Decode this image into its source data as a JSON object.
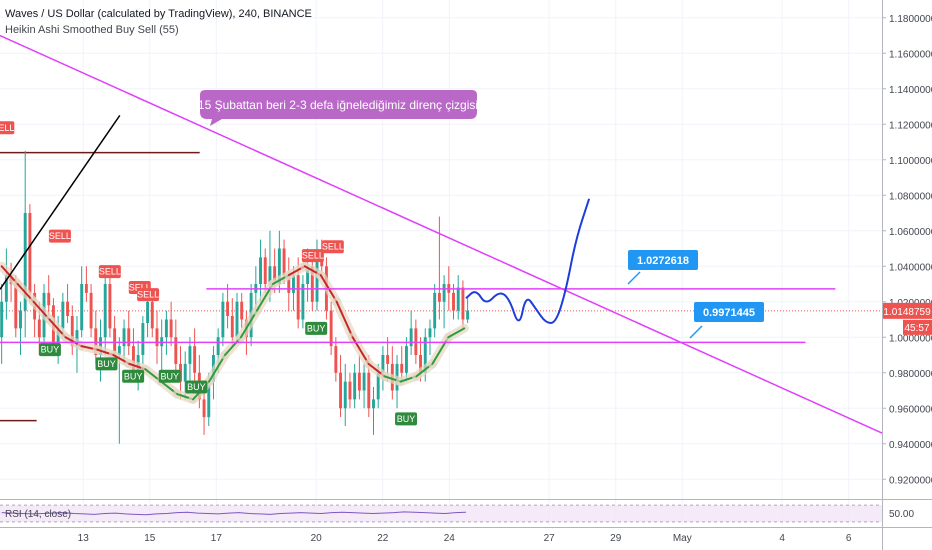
{
  "header": {
    "symbol_title": "Waves / US Dollar (calculated by TradingView), 240, BINANCE",
    "indicator_title": "Heikin Ashi Smoothed Buy Sell  (55)"
  },
  "colors": {
    "up": "#26a69a",
    "down": "#ef5350",
    "trend": "#e040fb",
    "projection": "#1e3ddb",
    "label_blue": "#2196f3",
    "smooth_up": "#2e9e3c",
    "smooth_down": "#c62828"
  },
  "chart_data": {
    "type": "candlestick",
    "price_axis": {
      "ylim": [
        0.91,
        1.19
      ],
      "ticks": [
        "1.1800000",
        "1.1600000",
        "1.1400000",
        "1.1200000",
        "1.1000000",
        "1.0800000",
        "1.0600000",
        "1.0400000",
        "1.0200000",
        "1.0000000",
        "0.9800000",
        "0.9600000",
        "0.9400000",
        "0.9200000"
      ],
      "tick_values": [
        1.18,
        1.16,
        1.14,
        1.12,
        1.1,
        1.08,
        1.06,
        1.04,
        1.02,
        1.0,
        0.98,
        0.96,
        0.94,
        0.92
      ],
      "last_price": "1.0148759",
      "last_price_value": 1.0148759,
      "countdown": "45:57"
    },
    "time_axis": {
      "xlim": [
        10.5,
        37.0
      ],
      "ticks": [
        {
          "label": "13",
          "day": 13
        },
        {
          "label": "15",
          "day": 15
        },
        {
          "label": "17",
          "day": 17
        },
        {
          "label": "20",
          "day": 20
        },
        {
          "label": "22",
          "day": 22
        },
        {
          "label": "24",
          "day": 24
        },
        {
          "label": "27",
          "day": 27
        },
        {
          "label": "29",
          "day": 29
        },
        {
          "label": "May",
          "day": 31
        },
        {
          "label": "4",
          "day": 34
        },
        {
          "label": "6",
          "day": 36
        }
      ]
    },
    "candles": [
      [
        1.0,
        1.03,
        0.985,
        1.02
      ],
      [
        1.02,
        1.05,
        1.01,
        1.035
      ],
      [
        1.035,
        1.042,
        1.02,
        1.03
      ],
      [
        1.03,
        1.035,
        1.0,
        1.005
      ],
      [
        1.005,
        1.02,
        0.99,
        1.015
      ],
      [
        1.015,
        1.105,
        1.0,
        1.07
      ],
      [
        1.07,
        1.075,
        1.02,
        1.025
      ],
      [
        1.025,
        1.03,
        1.0,
        1.01
      ],
      [
        1.01,
        1.02,
        0.99,
        1.0
      ],
      [
        1.0,
        1.03,
        0.995,
        1.025
      ],
      [
        1.025,
        1.035,
        1.012,
        1.018
      ],
      [
        1.018,
        1.022,
        0.992,
        0.996
      ],
      [
        0.996,
        1.012,
        0.985,
        1.005
      ],
      [
        1.005,
        1.025,
        1.0,
        1.02
      ],
      [
        1.02,
        1.03,
        1.008,
        1.012
      ],
      [
        1.012,
        1.018,
        0.99,
        0.995
      ],
      [
        0.995,
        1.012,
        0.98,
        1.004
      ],
      [
        1.004,
        1.04,
        1.0,
        1.03
      ],
      [
        1.03,
        1.04,
        1.02,
        1.025
      ],
      [
        1.025,
        1.03,
        1.0,
        1.005
      ],
      [
        1.005,
        1.015,
        0.985,
        0.99
      ],
      [
        0.99,
        1.01,
        0.975,
        1.0
      ],
      [
        1.0,
        1.035,
        0.99,
        1.03
      ],
      [
        1.03,
        1.035,
        1.0,
        1.005
      ],
      [
        1.005,
        1.012,
        0.985,
        0.99
      ],
      [
        0.99,
        1.0,
        0.94,
        0.995
      ],
      [
        0.995,
        1.01,
        0.985,
        1.005
      ],
      [
        1.005,
        1.015,
        0.99,
        0.995
      ],
      [
        0.995,
        1.005,
        0.975,
        0.98
      ],
      [
        0.98,
        0.998,
        0.97,
        0.99
      ],
      [
        0.99,
        1.012,
        0.985,
        1.008
      ],
      [
        1.008,
        1.03,
        1.0,
        1.02
      ],
      [
        1.02,
        1.025,
        1.0,
        1.005
      ],
      [
        1.005,
        1.015,
        0.985,
        0.995
      ],
      [
        0.995,
        1.01,
        0.98,
        1.0
      ],
      [
        1.0,
        1.015,
        0.99,
        1.01
      ],
      [
        1.01,
        1.02,
        0.995,
        1.0
      ],
      [
        1.0,
        1.01,
        0.975,
        0.985
      ],
      [
        0.985,
        0.995,
        0.965,
        0.975
      ],
      [
        0.975,
        0.992,
        0.965,
        0.985
      ],
      [
        0.985,
        1.0,
        0.975,
        0.995
      ],
      [
        0.995,
        1.005,
        0.975,
        0.98
      ],
      [
        0.98,
        0.99,
        0.96,
        0.965
      ],
      [
        0.965,
        0.975,
        0.945,
        0.955
      ],
      [
        0.955,
        0.98,
        0.95,
        0.975
      ],
      [
        0.975,
        0.995,
        0.965,
        0.99
      ],
      [
        0.99,
        1.005,
        0.98,
        1.0
      ],
      [
        1.0,
        1.025,
        0.995,
        1.02
      ],
      [
        1.02,
        1.03,
        1.005,
        1.012
      ],
      [
        1.012,
        1.022,
        0.995,
        1.0
      ],
      [
        1.0,
        1.025,
        0.998,
        1.02
      ],
      [
        1.02,
        1.025,
        1.005,
        1.01
      ],
      [
        1.01,
        1.015,
        0.99,
        1.0
      ],
      [
        1.0,
        1.03,
        0.995,
        1.025
      ],
      [
        1.025,
        1.04,
        1.015,
        1.03
      ],
      [
        1.03,
        1.055,
        1.02,
        1.045
      ],
      [
        1.045,
        1.05,
        1.025,
        1.03
      ],
      [
        1.03,
        1.06,
        1.02,
        1.04
      ],
      [
        1.04,
        1.05,
        1.025,
        1.03
      ],
      [
        1.03,
        1.06,
        1.025,
        1.05
      ],
      [
        1.05,
        1.055,
        1.03,
        1.035
      ],
      [
        1.035,
        1.045,
        1.015,
        1.025
      ],
      [
        1.025,
        1.04,
        1.015,
        1.035
      ],
      [
        1.035,
        1.045,
        1.005,
        1.01
      ],
      [
        1.01,
        1.035,
        1.005,
        1.03
      ],
      [
        1.03,
        1.05,
        1.02,
        1.04
      ],
      [
        1.04,
        1.045,
        1.015,
        1.02
      ],
      [
        1.02,
        1.055,
        1.015,
        1.045
      ],
      [
        1.045,
        1.055,
        1.035,
        1.04
      ],
      [
        1.04,
        1.045,
        1.01,
        1.015
      ],
      [
        1.015,
        1.02,
        0.99,
        0.995
      ],
      [
        0.995,
        1.0,
        0.975,
        0.98
      ],
      [
        0.98,
        0.99,
        0.955,
        0.96
      ],
      [
        0.96,
        0.985,
        0.95,
        0.975
      ],
      [
        0.975,
        0.98,
        0.96,
        0.965
      ],
      [
        0.965,
        0.985,
        0.96,
        0.98
      ],
      [
        0.98,
        0.99,
        0.965,
        0.97
      ],
      [
        0.97,
        0.985,
        0.96,
        0.98
      ],
      [
        0.98,
        0.99,
        0.955,
        0.96
      ],
      [
        0.96,
        0.972,
        0.945,
        0.965
      ],
      [
        0.965,
        0.985,
        0.96,
        0.98
      ],
      [
        0.98,
        0.995,
        0.97,
        0.99
      ],
      [
        0.99,
        1.0,
        0.975,
        0.985
      ],
      [
        0.985,
        0.995,
        0.965,
        0.97
      ],
      [
        0.97,
        0.99,
        0.96,
        0.985
      ],
      [
        0.985,
        0.995,
        0.975,
        0.98
      ],
      [
        0.98,
        1.0,
        0.975,
        0.995
      ],
      [
        0.995,
        1.015,
        0.99,
        1.005
      ],
      [
        1.005,
        1.01,
        0.985,
        0.99
      ],
      [
        0.99,
        1.0,
        0.975,
        0.98
      ],
      [
        0.98,
        1.005,
        0.975,
        1.0
      ],
      [
        1.0,
        1.01,
        0.99,
        1.005
      ],
      [
        1.005,
        1.03,
        1.0,
        1.025
      ],
      [
        1.025,
        1.068,
        1.01,
        1.02
      ],
      [
        1.02,
        1.035,
        1.005,
        1.03
      ],
      [
        1.03,
        1.04,
        1.015,
        1.025
      ],
      [
        1.025,
        1.03,
        1.01,
        1.015
      ],
      [
        1.015,
        1.035,
        1.01,
        1.028
      ],
      [
        1.028,
        1.032,
        1.005,
        1.01
      ],
      [
        1.01,
        1.022,
        1.008,
        1.015
      ]
    ],
    "smoothed_line": {
      "colors_by_segment": [
        "down",
        "down",
        "down",
        "up",
        "up",
        "up",
        "down",
        "down",
        "up",
        "up"
      ],
      "values": [
        1.04,
        1.03,
        1.02,
        1.01,
        1.0,
        0.995,
        0.993,
        0.99,
        0.985,
        0.982,
        0.975,
        0.968,
        0.965,
        0.975,
        0.99,
        1.0,
        1.015,
        1.03,
        1.035,
        1.04,
        1.035,
        1.02,
        1.0,
        0.985,
        0.978,
        0.975,
        0.978,
        0.985,
        1.0,
        1.005
      ]
    },
    "signals": [
      {
        "type": "SELL",
        "day": 10.6,
        "price": 1.118
      },
      {
        "type": "SELL",
        "day": 12.3,
        "price": 1.057
      },
      {
        "type": "SELL",
        "day": 13.8,
        "price": 1.037
      },
      {
        "type": "SELL",
        "day": 14.7,
        "price": 1.028
      },
      {
        "type": "SELL",
        "day": 14.95,
        "price": 1.024
      },
      {
        "type": "SELL",
        "day": 19.9,
        "price": 1.046
      },
      {
        "type": "SELL",
        "day": 20.5,
        "price": 1.051
      },
      {
        "type": "BUY",
        "day": 12.0,
        "price": 0.993
      },
      {
        "type": "BUY",
        "day": 13.7,
        "price": 0.985
      },
      {
        "type": "BUY",
        "day": 14.5,
        "price": 0.978
      },
      {
        "type": "BUY",
        "day": 15.6,
        "price": 0.978
      },
      {
        "type": "BUY",
        "day": 16.4,
        "price": 0.972
      },
      {
        "type": "BUY",
        "day": 20.0,
        "price": 1.005
      },
      {
        "type": "BUY",
        "day": 22.7,
        "price": 0.954
      }
    ],
    "drawings": {
      "descending_trendline": {
        "from": {
          "day": 10.5,
          "price": 1.17
        },
        "to": {
          "day": 37.0,
          "price": 0.946
        }
      },
      "resistance_line": {
        "from": {
          "day": 16.7,
          "price": 1.0272618
        },
        "to": {
          "day": 35.6,
          "price": 1.0272618
        }
      },
      "support_line": {
        "from": {
          "day": 10.5,
          "price": 0.9971445
        },
        "to": {
          "day": 34.7,
          "price": 0.9971445
        }
      },
      "old_top_line": {
        "from": {
          "day": 10.5,
          "price": 1.104
        },
        "to": {
          "day": 16.5,
          "price": 1.104
        }
      },
      "old_bottom_line": {
        "from": {
          "day": 10.5,
          "price": 0.953
        },
        "to": {
          "day": 11.6,
          "price": 0.953
        }
      },
      "black_trendline": {
        "from": {
          "day": 10.5,
          "price": 1.027
        },
        "to": {
          "day": 14.1,
          "price": 1.125
        }
      },
      "last_price_line_price": 1.0148759,
      "projection_path": [
        {
          "day": 24.5,
          "price": 1.022
        },
        {
          "day": 24.8,
          "price": 1.027
        },
        {
          "day": 25.1,
          "price": 1.018
        },
        {
          "day": 25.5,
          "price": 1.026
        },
        {
          "day": 25.8,
          "price": 1.022
        },
        {
          "day": 26.1,
          "price": 1.005
        },
        {
          "day": 26.3,
          "price": 1.024
        },
        {
          "day": 26.6,
          "price": 1.016
        },
        {
          "day": 26.9,
          "price": 1.008
        },
        {
          "day": 27.2,
          "price": 1.008
        },
        {
          "day": 27.5,
          "price": 1.026
        },
        {
          "day": 27.8,
          "price": 1.055
        },
        {
          "day": 28.2,
          "price": 1.078
        }
      ]
    },
    "annotations": {
      "resistance_note": "15 Şubattan beri 2-3 defa iğnelediğimiz direnç çizgisi",
      "resistance_label": "1.0272618",
      "support_label": "0.9971445"
    },
    "rsi": {
      "label": "RSI (14, close)",
      "level_label": "50.00",
      "ylim": [
        20,
        80
      ],
      "upper": 70,
      "lower": 30,
      "values": [
        52,
        51,
        50,
        49,
        50,
        51,
        52,
        50,
        49,
        48,
        50,
        51,
        49,
        48,
        47,
        49,
        50,
        52,
        53,
        51,
        50,
        49,
        51,
        52,
        50,
        49,
        48,
        50,
        51,
        52,
        51,
        50,
        52,
        53,
        52,
        51,
        50,
        51,
        52,
        54,
        53,
        52,
        51,
        50,
        52,
        53
      ]
    }
  }
}
